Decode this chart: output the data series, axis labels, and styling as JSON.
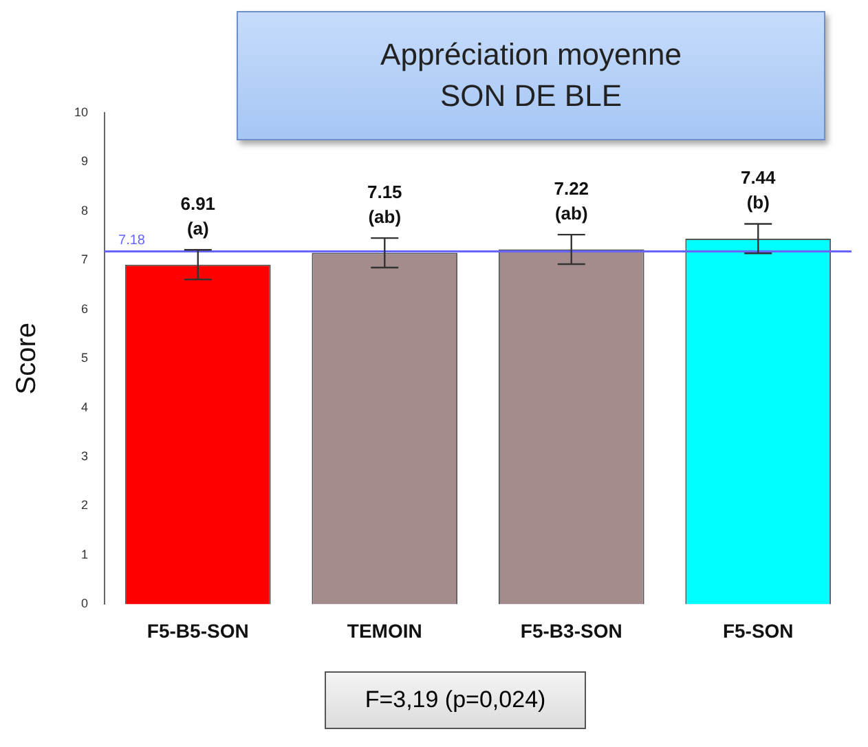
{
  "chart_data": {
    "type": "bar",
    "title": "Appréciation moyenne",
    "subtitle": "SON DE BLE",
    "ylabel": "Score",
    "categories": [
      "F5-B5-SON",
      "TEMOIN",
      "F5-B3-SON",
      "F5-SON"
    ],
    "values": [
      6.91,
      7.15,
      7.22,
      7.44
    ],
    "colors": [
      "#ff0000",
      "#a48c8c",
      "#a48c8c",
      "#00ffff"
    ],
    "errors": [
      0.3,
      0.3,
      0.3,
      0.3
    ],
    "value_labels": [
      "6.91",
      "7.15",
      "7.22",
      "7.44"
    ],
    "ylim": [
      0,
      10
    ],
    "yticks": [
      0,
      1,
      2,
      3,
      4,
      5,
      6,
      7,
      8,
      9,
      10
    ],
    "grid": false,
    "legend": false,
    "ref_lines": [
      {
        "axis": "y",
        "value": 7.18,
        "label": "7.18",
        "color": "#6666ff"
      }
    ],
    "annotations": [
      {
        "text": "(a)",
        "x": "F5-B5-SON",
        "y": 6.91
      },
      {
        "text": "(ab)",
        "x": "TEMOIN",
        "y": 7.15
      },
      {
        "text": "(ab)",
        "x": "F5-B3-SON",
        "y": 7.22
      },
      {
        "text": "(b)",
        "x": "F5-SON",
        "y": 7.44
      },
      "F=3,19 (p=0,024)"
    ]
  }
}
